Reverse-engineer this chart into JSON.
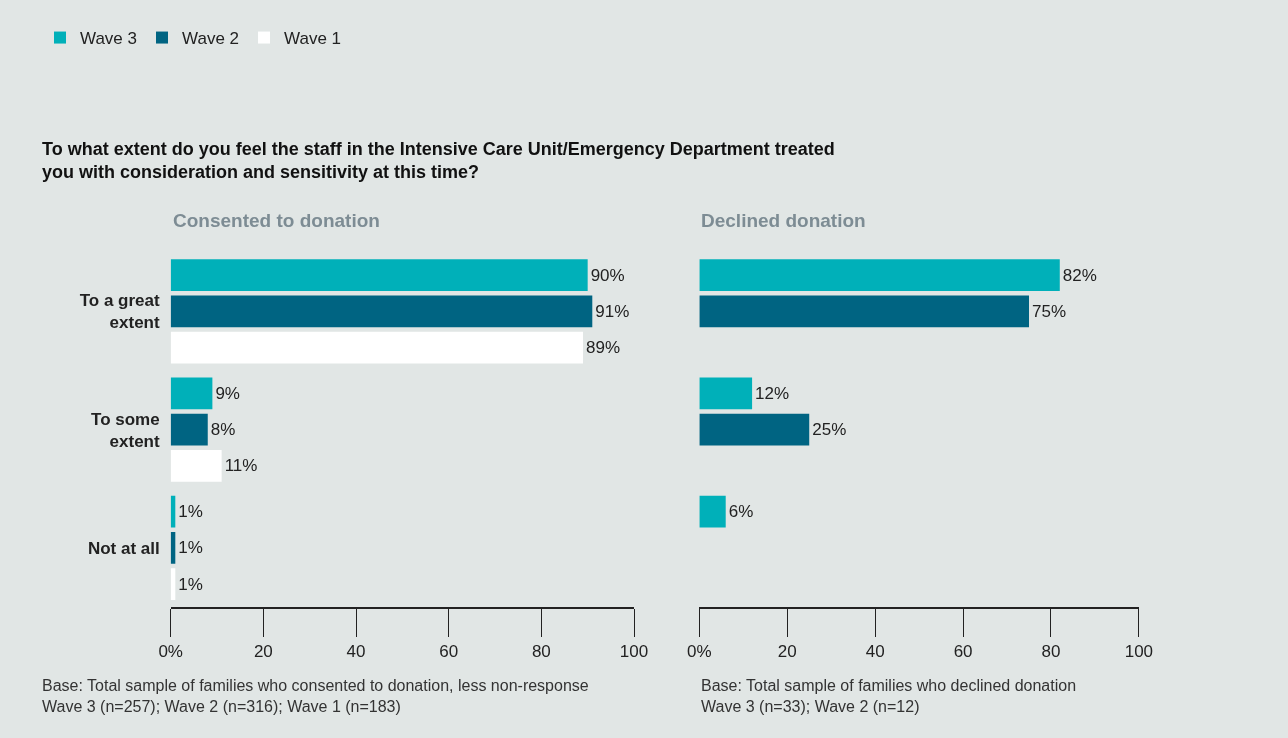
{
  "chart_data": [
    {
      "type": "bar",
      "orientation": "horizontal",
      "title": "To what extent do you feel the staff in the Intensive Care Unit/Emergency Department treated you with consideration and sensitivity at this time?",
      "subtitle": "Consented to donation",
      "categories": [
        "To a great extent",
        "To some extent",
        "Not at all"
      ],
      "series": [
        {
          "name": "Wave 3",
          "color": "#00b0b9",
          "values": [
            90,
            9,
            1
          ],
          "value_labels": [
            "90%",
            "9%",
            "1%"
          ]
        },
        {
          "name": "Wave 2",
          "color": "#006482",
          "values": [
            91,
            8,
            1
          ],
          "value_labels": [
            "91%",
            "8%",
            "1%"
          ]
        },
        {
          "name": "Wave 1",
          "color": "#ffffff",
          "values": [
            89,
            11,
            1
          ],
          "value_labels": [
            "89%",
            "11%",
            "1%"
          ]
        }
      ],
      "xlim": [
        0,
        100
      ],
      "xticks": [
        {
          "value": 0,
          "label": "0%"
        },
        20,
        40,
        60,
        80,
        100
      ],
      "legend": "top left",
      "grid": false,
      "annotations": [
        "Base: Total sample of families who consented to donation, less non-response\nWave 3 (n=257); Wave 2 (n=316); Wave 1 (n=183)"
      ]
    },
    {
      "type": "bar",
      "orientation": "horizontal",
      "subtitle": "Declined donation",
      "categories": [
        null,
        null,
        null
      ],
      "series": [
        {
          "name": "Wave 3",
          "color": "#00b0b9",
          "values": [
            82,
            12,
            6
          ],
          "value_labels": [
            "82%",
            "12%",
            "6%"
          ]
        },
        {
          "name": "Wave 2",
          "color": "#006482",
          "values": [
            75,
            25,
            null
          ],
          "value_labels": [
            "75%",
            "25%",
            null
          ]
        },
        {
          "name": "Wave 1",
          "color": "#ffffff",
          "values": [
            null,
            null,
            null
          ],
          "value_labels": [
            null,
            null,
            null
          ]
        }
      ],
      "xlim": [
        0,
        100
      ],
      "xticks": [
        {
          "value": 0,
          "label": "0%"
        },
        20,
        40,
        60,
        80,
        100
      ],
      "legend": false,
      "grid": false,
      "annotations": [
        "Base: Total sample of families who declined donation\nWave 3 (n=33); Wave 2 (n=12)"
      ]
    }
  ]
}
